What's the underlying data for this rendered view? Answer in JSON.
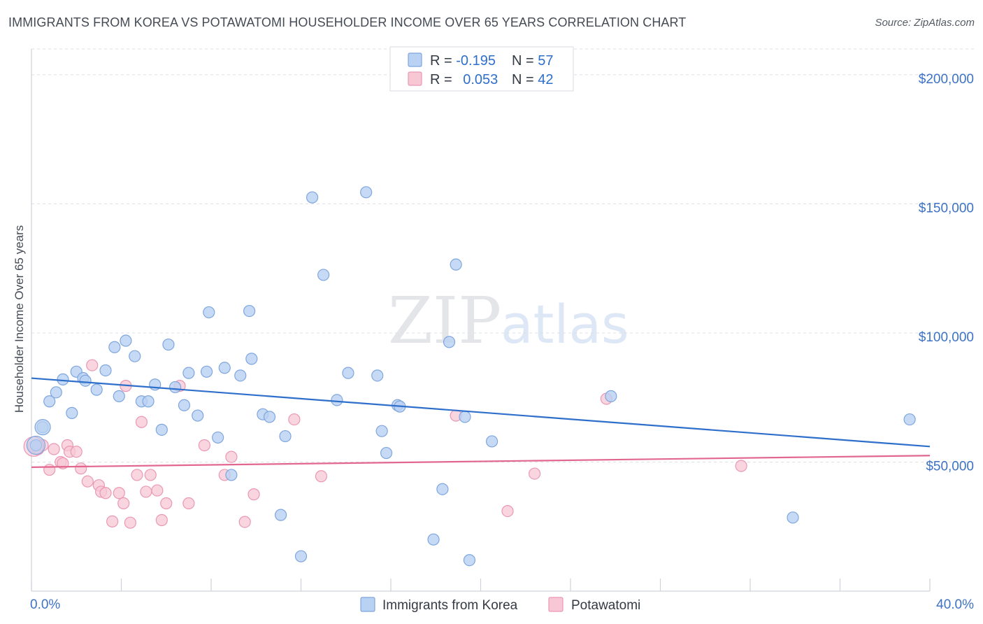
{
  "title": "IMMIGRANTS FROM KOREA VS POTAWATOMI HOUSEHOLDER INCOME OVER 65 YEARS CORRELATION CHART",
  "source": "Source: ZipAtlas.com",
  "watermark": {
    "zip": "ZIP",
    "atlas": "atlas"
  },
  "colors": {
    "korea_fill": "#b9d1f2",
    "korea_stroke": "#7ea6de",
    "korea_line": "#2f6fcc",
    "pota_fill": "#f7c7d6",
    "pota_stroke": "#ea98b3",
    "pota_line": "#e2678f",
    "grid": "#dcdfe4",
    "axis_label": "#3d72c4"
  },
  "legend": {
    "rows": [
      {
        "r_label": "R = ",
        "r_value": "-0.195",
        "n_label": "N = ",
        "n_value": "57"
      },
      {
        "r_label": "R = ",
        "r_value": "0.053",
        "n_label": "N = ",
        "n_value": "42"
      }
    ]
  },
  "chart_data": {
    "type": "scatter",
    "xlabel": "",
    "ylabel": "Householder Income Over 65 years",
    "xlim": [
      0,
      40
    ],
    "ylim": [
      0,
      210000
    ],
    "x_tick_labels": [
      "0.0%",
      "40.0%"
    ],
    "y_ticks": [
      50000,
      100000,
      150000,
      200000
    ],
    "y_tick_labels": [
      "$50,000",
      "$100,000",
      "$150,000",
      "$200,000"
    ],
    "grid": "horizontal dashed",
    "legend_placement": "top-center and bottom",
    "series": [
      {
        "name": "Immigrants from Korea",
        "trend": {
          "x": [
            0,
            40
          ],
          "y": [
            82500,
            56000
          ]
        },
        "points": [
          [
            0.2,
            56500
          ],
          [
            0.5,
            63500
          ],
          [
            0.8,
            73500
          ],
          [
            1.1,
            77000
          ],
          [
            1.4,
            82000
          ],
          [
            1.8,
            69000
          ],
          [
            2.0,
            85000
          ],
          [
            2.3,
            82500
          ],
          [
            2.4,
            81500
          ],
          [
            2.9,
            78000
          ],
          [
            3.3,
            85500
          ],
          [
            3.7,
            94500
          ],
          [
            3.9,
            75500
          ],
          [
            4.2,
            97000
          ],
          [
            4.6,
            91000
          ],
          [
            4.9,
            73500
          ],
          [
            5.2,
            73500
          ],
          [
            5.5,
            80000
          ],
          [
            5.8,
            62500
          ],
          [
            6.1,
            95500
          ],
          [
            6.4,
            79000
          ],
          [
            6.8,
            72000
          ],
          [
            7.0,
            84500
          ],
          [
            7.4,
            68000
          ],
          [
            7.8,
            85000
          ],
          [
            7.9,
            108000
          ],
          [
            8.3,
            59500
          ],
          [
            8.6,
            86500
          ],
          [
            8.9,
            45000
          ],
          [
            9.3,
            83500
          ],
          [
            9.7,
            108500
          ],
          [
            9.8,
            90000
          ],
          [
            10.3,
            68500
          ],
          [
            10.6,
            67500
          ],
          [
            11.1,
            29500
          ],
          [
            11.3,
            60000
          ],
          [
            12.0,
            13500
          ],
          [
            12.5,
            152500
          ],
          [
            13.0,
            122500
          ],
          [
            13.6,
            74000
          ],
          [
            14.1,
            84500
          ],
          [
            14.9,
            154500
          ],
          [
            15.4,
            83500
          ],
          [
            15.6,
            62000
          ],
          [
            15.8,
            53500
          ],
          [
            16.3,
            72000
          ],
          [
            16.4,
            71500
          ],
          [
            17.9,
            20000
          ],
          [
            18.3,
            39500
          ],
          [
            18.6,
            96500
          ],
          [
            18.9,
            126500
          ],
          [
            19.3,
            67500
          ],
          [
            19.5,
            12000
          ],
          [
            20.5,
            58000
          ],
          [
            25.8,
            75500
          ],
          [
            33.9,
            28500
          ],
          [
            39.1,
            66500
          ]
        ]
      },
      {
        "name": "Potawatomi",
        "trend": {
          "x": [
            0,
            40
          ],
          "y": [
            48000,
            52500
          ]
        },
        "points": [
          [
            0.1,
            56000
          ],
          [
            0.3,
            55000
          ],
          [
            0.5,
            56500
          ],
          [
            0.8,
            47000
          ],
          [
            1.0,
            55000
          ],
          [
            1.3,
            50000
          ],
          [
            1.4,
            49500
          ],
          [
            1.6,
            56500
          ],
          [
            1.7,
            54000
          ],
          [
            2.0,
            54000
          ],
          [
            2.2,
            47500
          ],
          [
            2.5,
            42500
          ],
          [
            2.7,
            87500
          ],
          [
            3.0,
            41000
          ],
          [
            3.1,
            38500
          ],
          [
            3.3,
            38000
          ],
          [
            3.6,
            27000
          ],
          [
            3.9,
            38000
          ],
          [
            4.1,
            34000
          ],
          [
            4.2,
            79500
          ],
          [
            4.4,
            26500
          ],
          [
            4.7,
            45000
          ],
          [
            4.9,
            65500
          ],
          [
            5.1,
            38500
          ],
          [
            5.3,
            45000
          ],
          [
            5.6,
            39000
          ],
          [
            5.8,
            27500
          ],
          [
            6.0,
            34000
          ],
          [
            6.6,
            79500
          ],
          [
            7.0,
            34000
          ],
          [
            7.7,
            56500
          ],
          [
            8.6,
            45000
          ],
          [
            8.9,
            52000
          ],
          [
            9.5,
            26800
          ],
          [
            9.9,
            37500
          ],
          [
            11.7,
            66500
          ],
          [
            12.9,
            44500
          ],
          [
            18.9,
            68000
          ],
          [
            21.2,
            31000
          ],
          [
            22.4,
            45500
          ],
          [
            25.6,
            74500
          ],
          [
            31.6,
            48500
          ]
        ]
      }
    ]
  }
}
